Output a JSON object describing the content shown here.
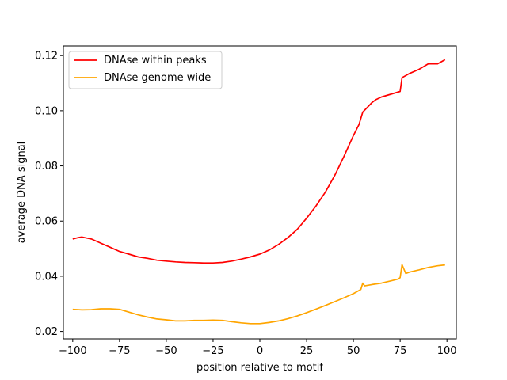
{
  "chart_data": {
    "type": "line",
    "title": "",
    "xlabel": "position relative to motif",
    "ylabel": "average DNA signal",
    "xlim": [
      -105,
      105
    ],
    "ylim": [
      0.0173,
      0.1235
    ],
    "xticks": [
      -100,
      -75,
      -50,
      -25,
      0,
      25,
      50,
      75,
      100
    ],
    "xtick_labels": [
      "−100",
      "−75",
      "−50",
      "−25",
      "0",
      "25",
      "50",
      "75",
      "100"
    ],
    "yticks": [
      0.02,
      0.04,
      0.06,
      0.08,
      0.1,
      0.12
    ],
    "ytick_labels": [
      "0.02",
      "0.04",
      "0.06",
      "0.08",
      "0.10",
      "0.12"
    ],
    "grid": false,
    "legend_position": "top-left",
    "series": [
      {
        "name": "DNAse within peaks",
        "color": "#ff0000",
        "x": [
          -100,
          -97,
          -95,
          -90,
          -85,
          -80,
          -75,
          -70,
          -65,
          -60,
          -55,
          -50,
          -45,
          -40,
          -35,
          -30,
          -25,
          -20,
          -15,
          -10,
          -5,
          0,
          5,
          10,
          15,
          20,
          25,
          30,
          35,
          40,
          45,
          50,
          53,
          55,
          60,
          62,
          65,
          70,
          75,
          76,
          80,
          85,
          90,
          95,
          99
        ],
        "y": [
          0.0535,
          0.054,
          0.0542,
          0.0535,
          0.052,
          0.0505,
          0.049,
          0.048,
          0.047,
          0.0465,
          0.0458,
          0.0455,
          0.0452,
          0.045,
          0.0449,
          0.0448,
          0.0448,
          0.045,
          0.0455,
          0.0462,
          0.047,
          0.048,
          0.0495,
          0.0515,
          0.054,
          0.057,
          0.061,
          0.0655,
          0.0705,
          0.0765,
          0.0835,
          0.091,
          0.095,
          0.0995,
          0.103,
          0.104,
          0.105,
          0.106,
          0.107,
          0.112,
          0.1135,
          0.115,
          0.117,
          0.117,
          0.1185
        ]
      },
      {
        "name": "DNAse genome wide",
        "color": "#ffa500",
        "x": [
          -100,
          -95,
          -90,
          -85,
          -80,
          -75,
          -70,
          -65,
          -60,
          -55,
          -50,
          -45,
          -40,
          -35,
          -30,
          -25,
          -20,
          -15,
          -10,
          -5,
          0,
          5,
          10,
          15,
          20,
          25,
          30,
          35,
          40,
          45,
          50,
          54,
          55,
          56,
          60,
          65,
          70,
          74,
          75,
          76,
          78,
          80,
          85,
          90,
          95,
          99
        ],
        "y": [
          0.028,
          0.0278,
          0.0279,
          0.0282,
          0.0282,
          0.028,
          0.027,
          0.026,
          0.0252,
          0.0245,
          0.0242,
          0.0238,
          0.0238,
          0.024,
          0.024,
          0.0241,
          0.024,
          0.0235,
          0.0231,
          0.0228,
          0.0228,
          0.0232,
          0.0238,
          0.0246,
          0.0256,
          0.0268,
          0.0281,
          0.0294,
          0.0308,
          0.0322,
          0.0337,
          0.0352,
          0.0375,
          0.0365,
          0.037,
          0.0375,
          0.0383,
          0.039,
          0.0395,
          0.0442,
          0.041,
          0.0415,
          0.0423,
          0.0432,
          0.0438,
          0.0441
        ]
      }
    ]
  }
}
